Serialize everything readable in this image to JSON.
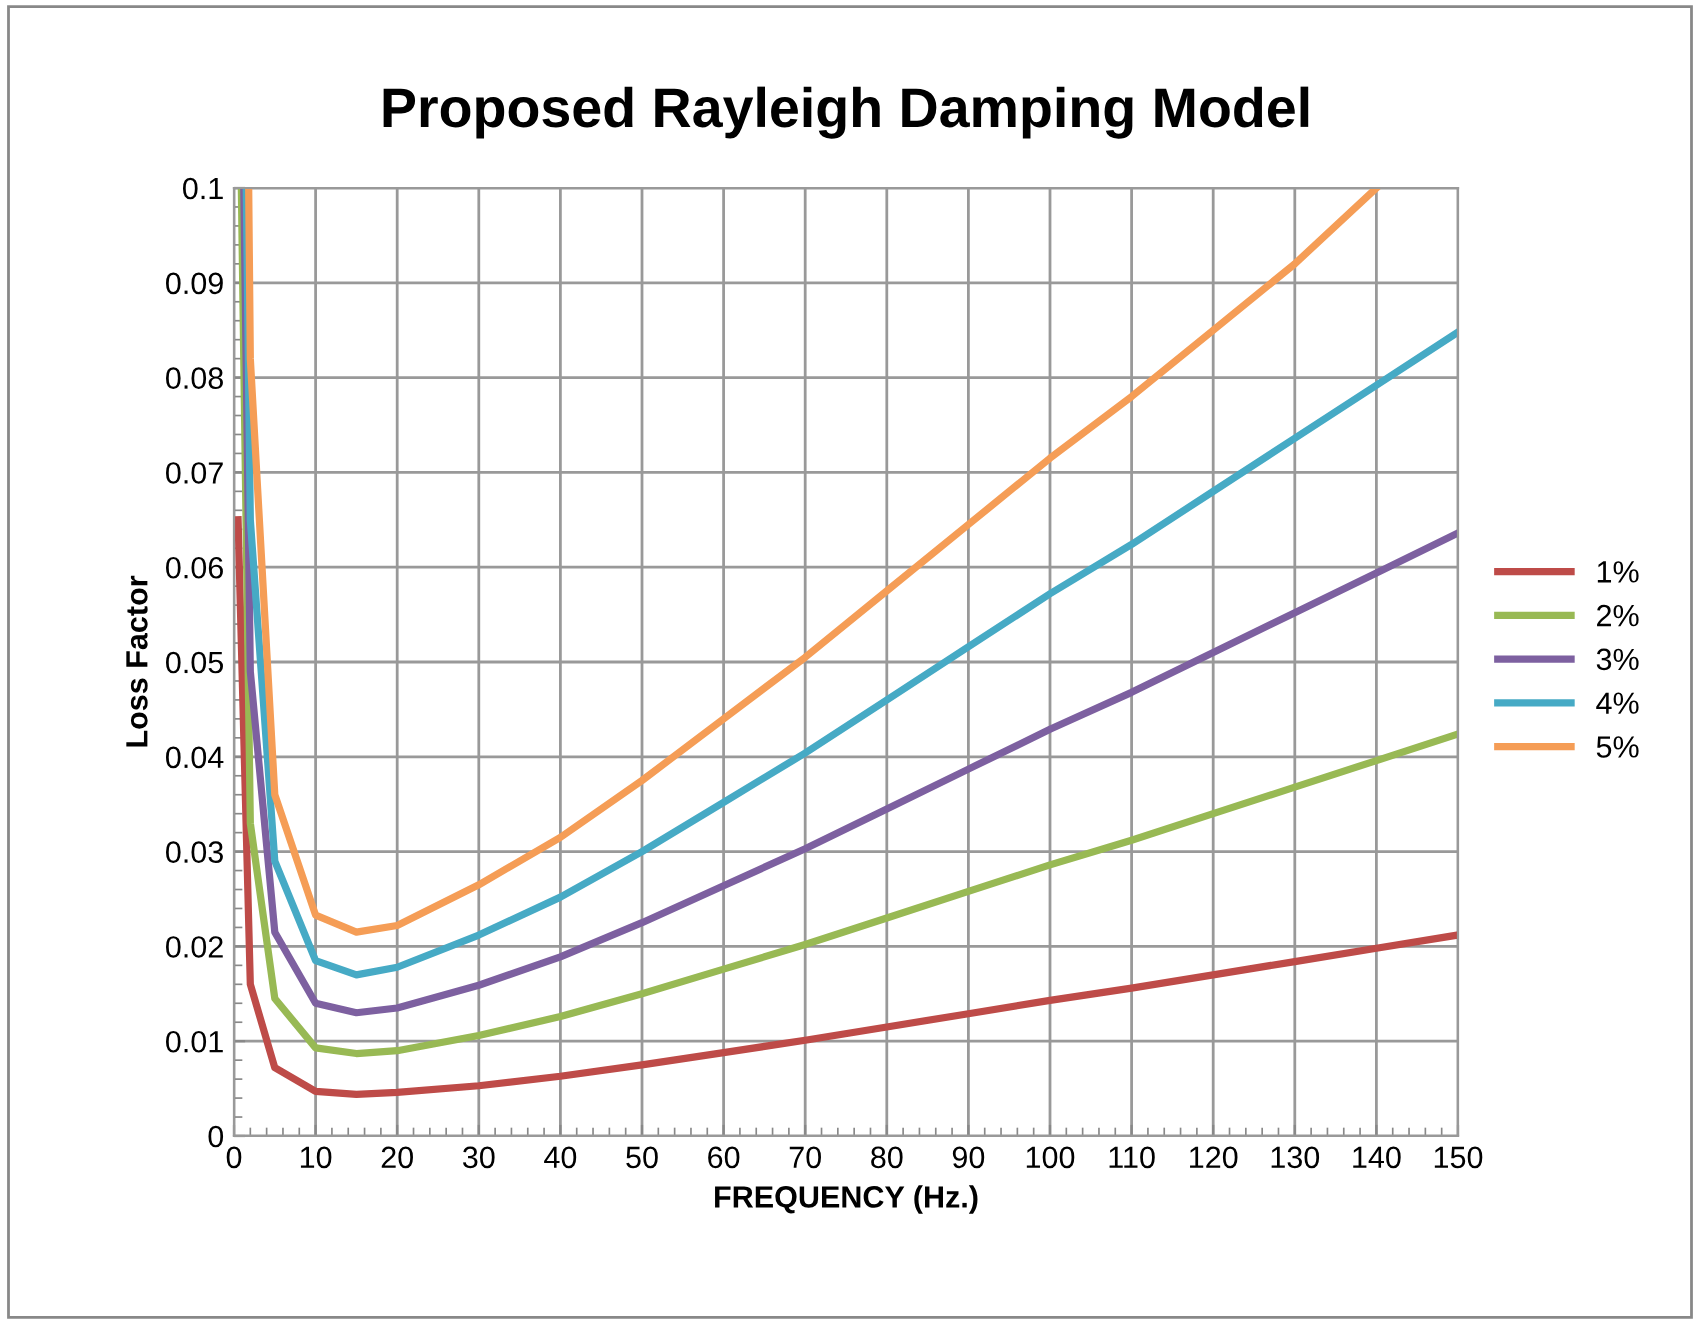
{
  "chart_data": {
    "type": "line",
    "title": "Proposed Rayleigh Damping Model",
    "xlabel": "FREQUENCY (Hz.)",
    "ylabel": "Loss Factor",
    "xlim": [
      0,
      150
    ],
    "xticks": [
      0,
      10,
      20,
      30,
      40,
      50,
      60,
      70,
      80,
      90,
      100,
      110,
      120,
      130,
      140,
      150
    ],
    "ylim": [
      0,
      0.1
    ],
    "yticks": [
      0,
      0.01,
      0.02,
      0.03,
      0.04,
      0.05,
      0.06,
      0.07,
      0.08,
      0.09,
      0.1
    ],
    "grid": true,
    "legend": "right",
    "marker": "none",
    "line_style": "solid",
    "series": [
      {
        "name": "1%",
        "color": "#be4b48",
        "x": [
          0.5,
          2,
          5,
          10,
          15,
          20,
          30,
          40,
          50,
          60,
          70,
          80,
          90,
          100,
          110,
          120,
          130,
          140,
          150
        ],
        "values": [
          0.065,
          0.016,
          0.0072,
          0.0047,
          0.0044,
          0.0046,
          0.0053,
          0.0063,
          0.0075,
          0.0088,
          0.0101,
          0.0115,
          0.0129,
          0.0143,
          0.0156,
          0.017,
          0.0184,
          0.0198,
          0.0212
        ]
      },
      {
        "name": "2%",
        "color": "#98b954",
        "x": [
          0.9,
          2,
          5,
          10,
          15,
          20,
          30,
          40,
          50,
          60,
          70,
          80,
          90,
          100,
          110,
          120,
          130,
          140,
          150
        ],
        "values": [
          0.1,
          0.033,
          0.0145,
          0.0093,
          0.0087,
          0.009,
          0.0106,
          0.0126,
          0.015,
          0.0176,
          0.0202,
          0.023,
          0.0258,
          0.0286,
          0.0312,
          0.034,
          0.0368,
          0.0396,
          0.0424
        ]
      },
      {
        "name": "3%",
        "color": "#7d60a0",
        "x": [
          1.2,
          2,
          5,
          10,
          15,
          20,
          30,
          40,
          50,
          60,
          70,
          80,
          90,
          100,
          110,
          120,
          130,
          140,
          150
        ],
        "values": [
          0.1,
          0.049,
          0.0215,
          0.014,
          0.013,
          0.0135,
          0.0159,
          0.0189,
          0.0225,
          0.0264,
          0.0303,
          0.0345,
          0.0387,
          0.0429,
          0.0468,
          0.051,
          0.0552,
          0.0594,
          0.0636
        ]
      },
      {
        "name": "4%",
        "color": "#46aac5",
        "x": [
          1.5,
          2,
          5,
          10,
          15,
          20,
          30,
          40,
          50,
          60,
          70,
          80,
          90,
          100,
          110,
          120,
          130,
          140,
          150
        ],
        "values": [
          0.1,
          0.065,
          0.029,
          0.0185,
          0.017,
          0.0178,
          0.0212,
          0.0252,
          0.03,
          0.0352,
          0.0404,
          0.046,
          0.0516,
          0.0572,
          0.0624,
          0.068,
          0.0736,
          0.0792,
          0.0848
        ]
      },
      {
        "name": "5%",
        "color": "#f59d56",
        "x": [
          1.8,
          2,
          5,
          10,
          15,
          20,
          30,
          40,
          50,
          60,
          70,
          80,
          90,
          100,
          110,
          120,
          130,
          140
        ],
        "values": [
          0.1,
          0.082,
          0.036,
          0.0233,
          0.0215,
          0.0222,
          0.0265,
          0.0315,
          0.0375,
          0.044,
          0.0505,
          0.0575,
          0.0645,
          0.0715,
          0.078,
          0.085,
          0.092,
          0.1
        ]
      }
    ]
  }
}
